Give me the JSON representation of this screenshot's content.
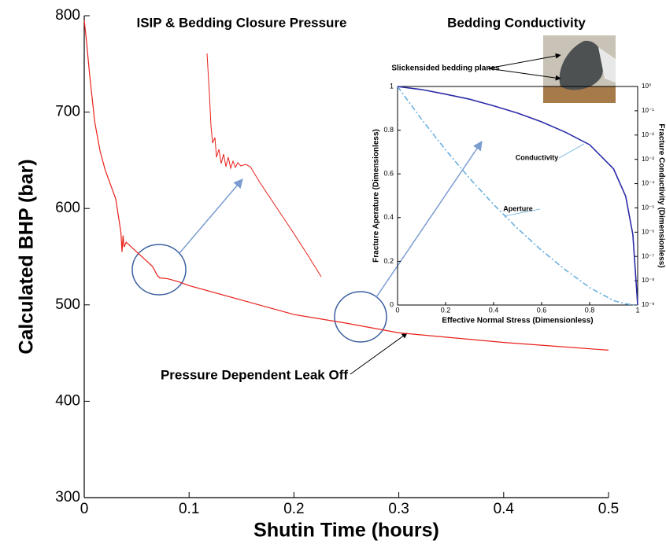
{
  "chart_data": [
    {
      "type": "line",
      "title": "ISIP & Bedding Closure Pressure",
      "xlabel": "Shutin Time (hours)",
      "ylabel": "Calculated BHP (bar)",
      "x": [
        0,
        0.002,
        0.005,
        0.01,
        0.015,
        0.02,
        0.03,
        0.035,
        0.036,
        0.037,
        0.038,
        0.04,
        0.05,
        0.06,
        0.065,
        0.07,
        0.072,
        0.08,
        0.09,
        0.1,
        0.15,
        0.2,
        0.25,
        0.3,
        0.35,
        0.4,
        0.45,
        0.5
      ],
      "values": [
        795,
        775,
        740,
        690,
        660,
        640,
        610,
        575,
        555,
        572,
        560,
        565,
        555,
        545,
        540,
        530,
        528,
        527,
        524,
        520,
        505,
        490,
        481,
        471,
        466,
        461,
        457,
        453
      ],
      "color": "#e8201a",
      "xlim": [
        0,
        0.5
      ],
      "xticks": [
        0,
        0.1,
        0.2,
        0.3,
        0.4,
        0.5
      ],
      "ylim": [
        300,
        800
      ],
      "yticks": [
        300,
        400,
        500,
        600,
        700,
        800
      ],
      "annotations": [
        "Pressure Dependent Leak Off"
      ]
    },
    {
      "type": "line",
      "title": "Bedding Conductivity",
      "xlabel": "Effective Normal Stress (Dimensionless)",
      "ylabel": "Fracture Aperature (Dimensionless)",
      "y2label": "Fracture Conductivity (Dimensionless)",
      "x": [
        0,
        0.1,
        0.2,
        0.3,
        0.4,
        0.5,
        0.6,
        0.7,
        0.8,
        0.9,
        0.95,
        0.98,
        1
      ],
      "series": [
        {
          "name": "Aperture",
          "color": "#6ab0e0",
          "values": [
            1,
            0.85,
            0.71,
            0.58,
            0.46,
            0.35,
            0.25,
            0.16,
            0.08,
            0.02,
            0.005,
            0.001,
            0
          ]
        },
        {
          "name": "Conductivity",
          "color": "#2b2ba8",
          "axis": "y2",
          "values": [
            1,
            0.75,
            0.48,
            0.3,
            0.16,
            0.08,
            0.035,
            0.013,
            0.004,
            0.0004,
            3e-05,
            8e-07,
            1e-09
          ]
        }
      ],
      "xlim": [
        0,
        1
      ],
      "xticks": [
        0,
        0.2,
        0.4,
        0.6,
        0.8,
        1
      ],
      "ylim": [
        0,
        1
      ],
      "yticks": [
        0,
        0.2,
        0.4,
        0.6,
        0.8,
        1
      ],
      "y2lim": [
        1e-09,
        1
      ],
      "y2log": true,
      "y2ticks": [
        {
          "value": 1e-09,
          "label": "10⁻⁹"
        },
        {
          "value": 1e-08,
          "label": "10⁻⁸"
        },
        {
          "value": 1e-07,
          "label": "10⁻⁷"
        },
        {
          "value": 1e-06,
          "label": "10⁻⁶"
        },
        {
          "value": 1e-05,
          "label": "10⁻⁵"
        },
        {
          "value": 0.0001,
          "label": "10⁻⁴"
        },
        {
          "value": 0.001,
          "label": "10⁻³"
        },
        {
          "value": 0.01,
          "label": "10⁻²"
        },
        {
          "value": 0.1,
          "label": "10⁻¹"
        },
        {
          "value": 1,
          "label": "10⁰"
        }
      ],
      "annotations": [
        "Slickensided bedding planes"
      ]
    }
  ]
}
